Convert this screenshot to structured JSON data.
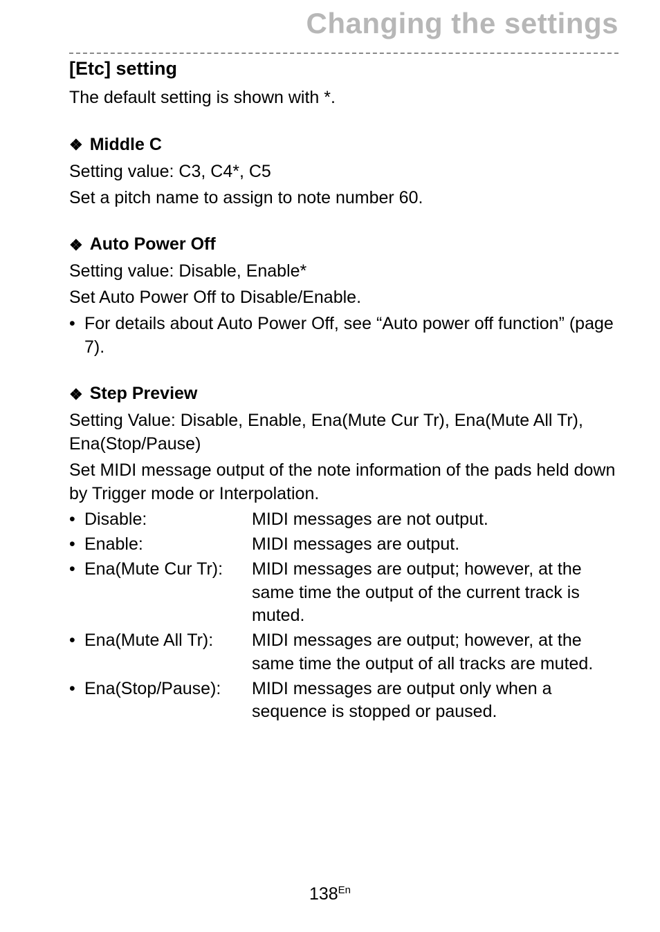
{
  "chapter_title": "Changing the settings",
  "section_heading": "[Etc] setting",
  "intro_text": "The default setting is shown with *.",
  "middle_c": {
    "heading": "Middle C",
    "line1": "Setting value: C3, C4*, C5",
    "line2": "Set a pitch name to assign to note number 60."
  },
  "auto_power_off": {
    "heading": "Auto Power Off",
    "line1": "Setting value: Disable, Enable*",
    "line2": "Set Auto Power Off to Disable/Enable.",
    "bullet1": "For details about Auto Power Off, see “Auto power off function” (page 7)."
  },
  "step_preview": {
    "heading": "Step Preview",
    "line1": "Setting Value: Disable, Enable, Ena(Mute Cur Tr), Ena(Mute All Tr), Ena(Stop/Pause)",
    "line2": "Set MIDI message output of the note information of the pads held down by Trigger mode or Interpolation.",
    "items": [
      {
        "term": "Disable:",
        "desc": "MIDI messages are not output."
      },
      {
        "term": "Enable:",
        "desc": "MIDI messages are output."
      },
      {
        "term": "Ena(Mute Cur Tr):",
        "desc": "MIDI messages are output; however, at the same time the output of the current track is muted."
      },
      {
        "term": "Ena(Mute All Tr):",
        "desc": "MIDI messages are output; however, at the same time the output of all tracks are muted."
      },
      {
        "term": "Ena(Stop/Pause):",
        "desc": "MIDI messages are output only when a sequence is stopped or paused."
      }
    ]
  },
  "page_number": "138",
  "page_lang": "En"
}
